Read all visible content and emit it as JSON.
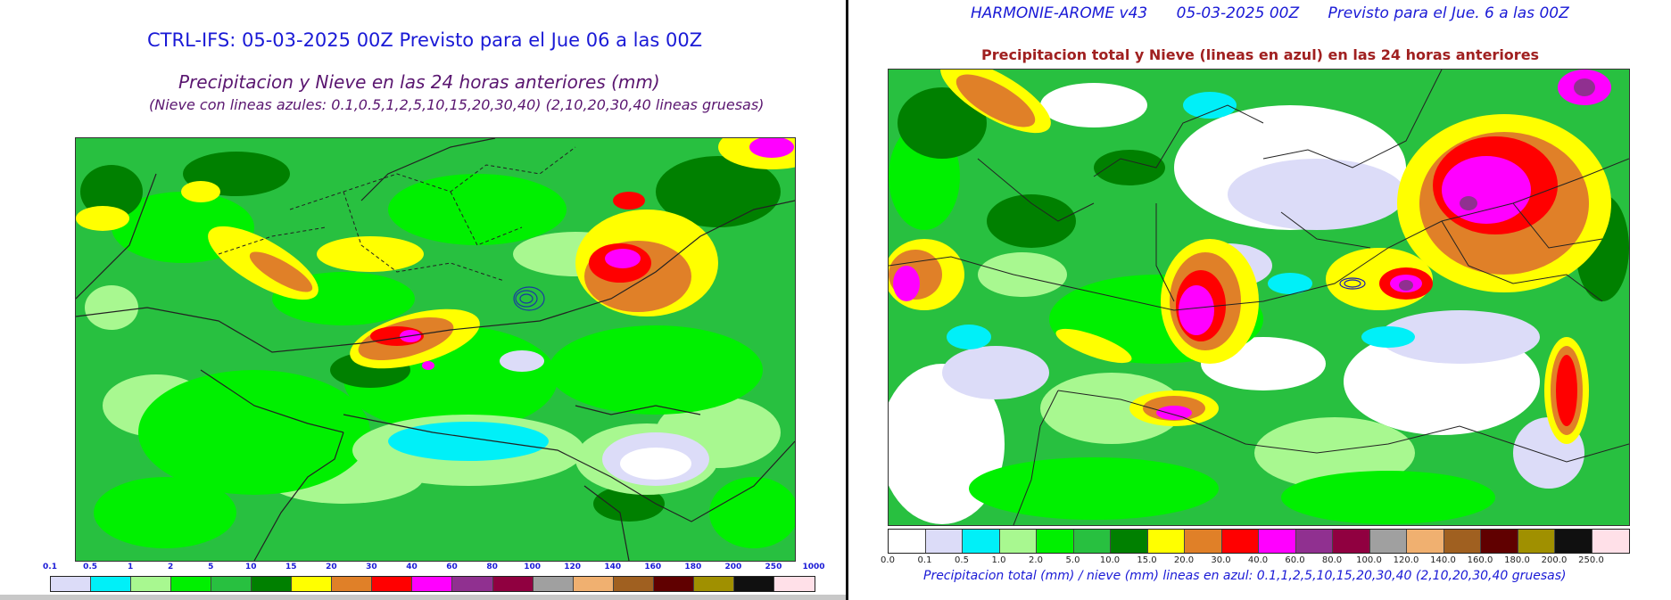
{
  "left": {
    "title": "CTRL-IFS: 05-03-2025 00Z Previsto para el Jue 06 a las 00Z",
    "subtitle": "Precipitacion y Nieve en las 24 horas anteriores (mm)",
    "note": "(Nieve con lineas azules: 0.1,0.5,1,2,5,10,15,20,30,40)  (2,10,20,30,40 lineas gruesas)",
    "colorbar": {
      "ticks": [
        "0.1",
        "0.5",
        "1",
        "2",
        "5",
        "10",
        "15",
        "20",
        "30",
        "40",
        "60",
        "80",
        "100",
        "120",
        "140",
        "160",
        "180",
        "200",
        "250",
        "1000"
      ],
      "colors": [
        "#dcdcf8",
        "#00f0f8",
        "#a8f890",
        "#00f000",
        "#28c040",
        "#008000",
        "#ffff00",
        "#e08028",
        "#ff0000",
        "#ff00ff",
        "#903090",
        "#900040",
        "#a0a0a0",
        "#f0b070",
        "#a06020",
        "#600000",
        "#a09000",
        "#101010",
        "#ffe0e8"
      ]
    }
  },
  "right": {
    "title": "HARMONIE-AROME v43      05-03-2025 00Z      Previsto para el Jue. 6 a las 00Z",
    "subtitle": "Precipitacion total y Nieve (lineas en azul) en las 24 horas anteriores",
    "caption": "Precipitacion total (mm) / nieve (mm) lineas en azul: 0.1,1,2,5,10,15,20,30,40  (2,10,20,30,40 gruesas)",
    "colorbar": {
      "ticks": [
        "0.0",
        "0.1",
        "0.5",
        "1.0",
        "2.0",
        "5.0",
        "10.0",
        "15.0",
        "20.0",
        "30.0",
        "40.0",
        "60.0",
        "80.0",
        "100.0",
        "120.0",
        "140.0",
        "160.0",
        "180.0",
        "200.0",
        "250.0"
      ],
      "colors": [
        "#ffffff",
        "#dcdcf8",
        "#00f0f8",
        "#a8f890",
        "#00f000",
        "#28c040",
        "#008000",
        "#ffff00",
        "#e08028",
        "#ff0000",
        "#ff00ff",
        "#903090",
        "#900040",
        "#a0a0a0",
        "#f0b070",
        "#a06020",
        "#600000",
        "#a09000",
        "#101010",
        "#ffe0e8"
      ]
    }
  }
}
